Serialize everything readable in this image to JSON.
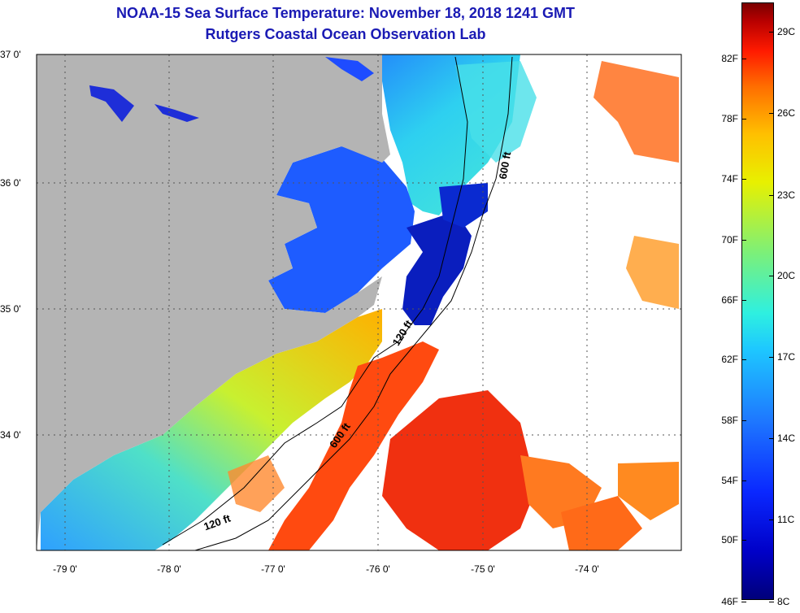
{
  "header": {
    "title": "NOAA-15 Sea Surface Temperature:  November 18, 2018 1241 GMT",
    "subtitle": "Rutgers Coastal Ocean Observation Lab"
  },
  "axes": {
    "lat_labels": [
      "37 0'",
      "36 0'",
      "35 0'",
      "34 0'"
    ],
    "lon_labels": [
      "-79 0'",
      "-78 0'",
      "-77 0'",
      "-76 0'",
      "-75 0'",
      "-74 0'"
    ]
  },
  "contours": {
    "labels": [
      "600 ft",
      "120 ft",
      "600 ft",
      "120 ft"
    ]
  },
  "colorbar": {
    "fahrenheit": [
      "82F",
      "78F",
      "74F",
      "70F",
      "66F",
      "62F",
      "58F",
      "54F",
      "50F",
      "46F"
    ],
    "celsius": [
      "29C",
      "26C",
      "23C",
      "20C",
      "17C",
      "14C",
      "11C",
      "8C"
    ]
  },
  "colors": {
    "land": "#b4b4b4",
    "cloud": "#ffffff",
    "title": "#1a1ab4",
    "coast_water": "#1e78ff",
    "warm_water": "#ff3c00"
  }
}
